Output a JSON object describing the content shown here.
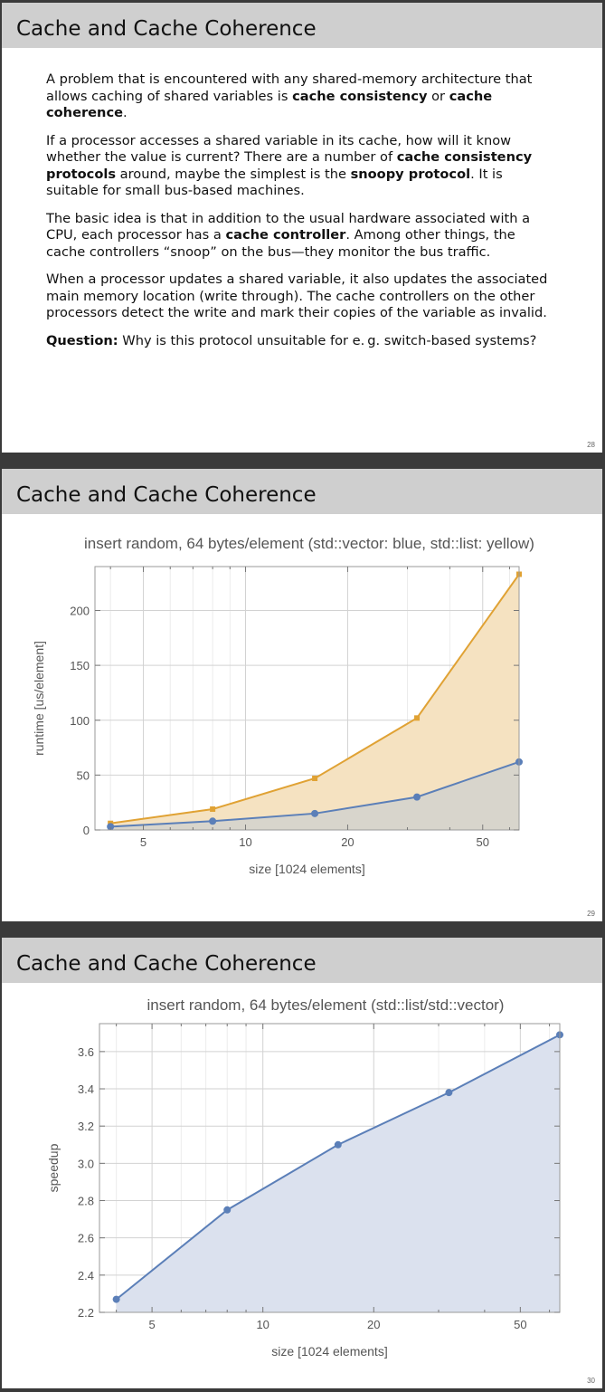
{
  "slides": [
    {
      "title": "Cache and Cache Coherence",
      "number": "28",
      "paragraphs": [
        [
          {
            "t": "A problem that is encountered with any shared-memory architecture that allows caching of shared variables is "
          },
          {
            "t": "cache consistency",
            "b": true
          },
          {
            "t": " or "
          },
          {
            "t": "cache coherence",
            "b": true
          },
          {
            "t": "."
          }
        ],
        [
          {
            "t": "If a processor accesses a shared variable in its cache, how will it know whether the value is current? There are a number of "
          },
          {
            "t": "cache consistency protocols",
            "b": true
          },
          {
            "t": " around, maybe the simplest is the "
          },
          {
            "t": "snoopy protocol",
            "b": true
          },
          {
            "t": ". It is suitable for small bus-based machines."
          }
        ],
        [
          {
            "t": "The basic idea is that in addition to the usual hardware associated with a CPU, each processor has a "
          },
          {
            "t": "cache controller",
            "b": true
          },
          {
            "t": ". Among other things, the cache controllers “snoop” on the bus—they monitor the bus traffic."
          }
        ],
        [
          {
            "t": "When a processor updates a shared variable, it also updates the associated main memory location (write through). The cache controllers on the other processors detect the write and mark their copies of the variable as invalid."
          }
        ],
        [
          {
            "t": "Question:",
            "b": true
          },
          {
            "t": " Why is this protocol unsuitable for e. g. switch-based systems?"
          }
        ]
      ]
    },
    {
      "title": "Cache and Cache Coherence",
      "number": "29"
    },
    {
      "title": "Cache and Cache Coherence",
      "number": "30"
    }
  ],
  "chart_data": [
    {
      "type": "area",
      "title": "insert random, 64 bytes/element (std::vector: blue, std::list: yellow)",
      "xlabel": "size [1024 elements]",
      "ylabel": "runtime [us/element]",
      "x_scale": "log",
      "xlim": [
        3.6,
        64
      ],
      "ylim": [
        0,
        240
      ],
      "x_ticks": [
        5,
        10,
        20,
        50
      ],
      "y_ticks": [
        0,
        50,
        100,
        150,
        200
      ],
      "grid": true,
      "series": [
        {
          "color": "#e0a234",
          "marker": "square",
          "fill": "#f5e2c1",
          "points": [
            [
              4,
              6
            ],
            [
              8,
              19
            ],
            [
              16,
              47
            ],
            [
              32,
              102
            ],
            [
              64,
              233
            ]
          ]
        },
        {
          "color": "#5b7fb8",
          "marker": "circle",
          "fill": "#d8d5cc",
          "points": [
            [
              4,
              3
            ],
            [
              8,
              8
            ],
            [
              16,
              15
            ],
            [
              32,
              30
            ],
            [
              64,
              62
            ]
          ]
        }
      ]
    },
    {
      "type": "area",
      "title": "insert random, 64 bytes/element (std::list/std::vector)",
      "xlabel": "size [1024 elements]",
      "ylabel": "speedup",
      "x_scale": "log",
      "xlim": [
        3.6,
        64
      ],
      "ylim": [
        2.2,
        3.75
      ],
      "x_ticks": [
        5,
        10,
        20,
        50
      ],
      "y_ticks": [
        2.2,
        2.4,
        2.6,
        2.8,
        3.0,
        3.2,
        3.4,
        3.6
      ],
      "y_tick_labels": [
        "2.2",
        "2.4",
        "2.6",
        "2.8",
        "3.0",
        "3.2",
        "3.4",
        "3.6"
      ],
      "grid": true,
      "series": [
        {
          "color": "#5b7fb8",
          "marker": "circle",
          "fill": "#dbe1ee",
          "points": [
            [
              4,
              2.27
            ],
            [
              8,
              2.75
            ],
            [
              16,
              3.1
            ],
            [
              32,
              3.38
            ],
            [
              64,
              3.69
            ]
          ]
        }
      ]
    }
  ]
}
